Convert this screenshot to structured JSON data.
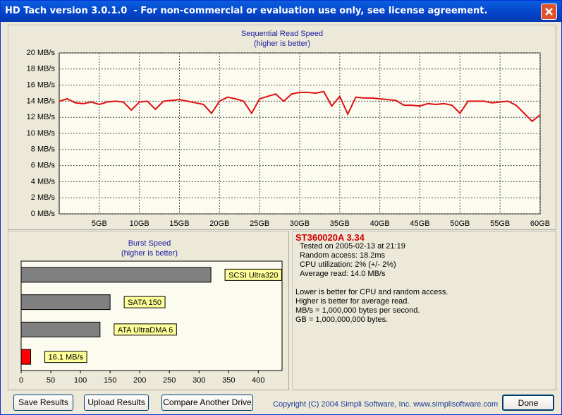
{
  "window_title": "HD Tach version 3.0.1.0  - For non-commercial or evaluation use only, see license agreement.",
  "chart_data": [
    {
      "type": "line",
      "title": "Sequential Read Speed",
      "subtitle": "(higher is better)",
      "color": "#e01010",
      "grid": true,
      "x": [
        0,
        1,
        2,
        3,
        4,
        5,
        6,
        7,
        8,
        9,
        10,
        11,
        12,
        13,
        14,
        15,
        16,
        17,
        18,
        19,
        20,
        21,
        22,
        23,
        24,
        25,
        26,
        27,
        28,
        29,
        30,
        31,
        32,
        33,
        34,
        35,
        36,
        37,
        38,
        39,
        40,
        41,
        42,
        43,
        44,
        45,
        46,
        47,
        48,
        49,
        50,
        51,
        52,
        53,
        54,
        55,
        56,
        57,
        58,
        59,
        60
      ],
      "values": [
        14.0,
        14.3,
        13.8,
        13.7,
        13.9,
        13.6,
        13.9,
        14.0,
        13.9,
        12.9,
        13.9,
        14.0,
        13.0,
        14.0,
        14.1,
        14.2,
        14.0,
        13.8,
        13.6,
        12.5,
        14.0,
        14.5,
        14.3,
        14.0,
        12.5,
        14.3,
        14.6,
        14.9,
        14.0,
        14.9,
        15.1,
        15.1,
        15.0,
        15.2,
        13.4,
        14.6,
        12.4,
        14.5,
        14.4,
        14.4,
        14.3,
        14.2,
        14.1,
        13.5,
        13.5,
        13.4,
        13.7,
        13.6,
        13.7,
        13.5,
        12.5,
        14.0,
        14.0,
        14.0,
        13.8,
        13.9,
        14.0,
        13.5,
        12.5,
        11.5,
        12.3
      ],
      "xlim": [
        0,
        60
      ],
      "xticks": [
        {
          "value": 5,
          "label": "5GB"
        },
        {
          "value": 10,
          "label": "10GB"
        },
        {
          "value": 15,
          "label": "15GB"
        },
        {
          "value": 20,
          "label": "20GB"
        },
        {
          "value": 25,
          "label": "25GB"
        },
        {
          "value": 30,
          "label": "30GB"
        },
        {
          "value": 35,
          "label": "35GB"
        },
        {
          "value": 40,
          "label": "40GB"
        },
        {
          "value": 45,
          "label": "45GB"
        },
        {
          "value": 50,
          "label": "50GB"
        },
        {
          "value": 55,
          "label": "55GB"
        },
        {
          "value": 60,
          "label": "60GB"
        }
      ],
      "ylim": [
        0,
        20
      ],
      "yticks": [
        {
          "value": 0,
          "label": "0 MB/s"
        },
        {
          "value": 2,
          "label": "2 MB/s"
        },
        {
          "value": 4,
          "label": "4 MB/s"
        },
        {
          "value": 6,
          "label": "6 MB/s"
        },
        {
          "value": 8,
          "label": "8 MB/s"
        },
        {
          "value": 10,
          "label": "10 MB/s"
        },
        {
          "value": 12,
          "label": "12 MB/s"
        },
        {
          "value": 14,
          "label": "14 MB/s"
        },
        {
          "value": 16,
          "label": "16 MB/s"
        },
        {
          "value": 18,
          "label": "18 MB/s"
        },
        {
          "value": 20,
          "label": "20 MB/s"
        }
      ]
    },
    {
      "type": "hbar",
      "title": "Burst Speed",
      "subtitle": "(higher is better)",
      "categories": [
        "SCSI Ultra320",
        "SATA 150",
        "ATA UltraDMA 6",
        null
      ],
      "values": [
        320,
        150,
        133,
        16.1
      ],
      "value_labels": [
        null,
        null,
        null,
        "16.1 MB/s"
      ],
      "colors": [
        "#808080",
        "#808080",
        "#808080",
        "#ff0000"
      ],
      "xlim": [
        0,
        440
      ],
      "xticks": [
        0,
        50,
        100,
        150,
        200,
        250,
        300,
        350,
        400
      ]
    }
  ],
  "info": {
    "drive": "ST360020A 3.34",
    "details": [
      "Tested on 2005-02-13 at 21:19",
      "Random access: 18.2ms",
      "CPU utilization: 2% (+/- 2%)",
      "Average read: 14.0 MB/s"
    ],
    "notes": [
      "Lower is better for CPU and random access.",
      "Higher is better for average read.",
      "MB/s = 1,000,000 bytes per second.",
      "GB = 1,000,000,000 bytes."
    ]
  },
  "buttons": [
    "Save Results",
    "Upload Results",
    "Compare Another Drive",
    "Done"
  ],
  "copyright": "Copyright (C) 2004 Simpli Software, Inc. www.simplisoftware.com"
}
